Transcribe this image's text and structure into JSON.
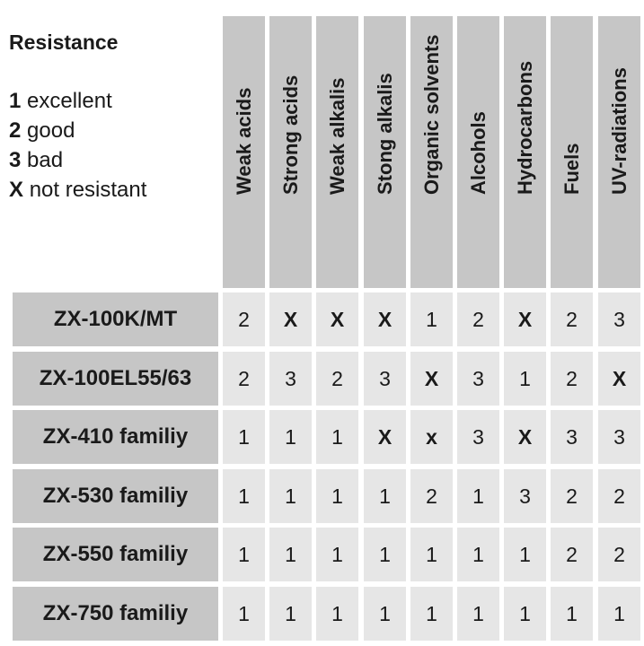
{
  "legend": {
    "title": "Resistance",
    "items": [
      {
        "key": "1",
        "text": "excellent"
      },
      {
        "key": "2",
        "text": "good"
      },
      {
        "key": "3",
        "text": "bad"
      },
      {
        "key": "X",
        "text": "not resistant"
      }
    ]
  },
  "chart_data": {
    "type": "table",
    "title": "Resistance",
    "columns": [
      "Weak acids",
      "Strong acids",
      "Weak alkalis",
      "Stong alkalis",
      "Organic solvents",
      "Alcohols",
      "Hydrocarbons",
      "Fuels",
      "UV-radiations"
    ],
    "rows": [
      {
        "name": "ZX-100K/MT",
        "values": [
          "2",
          "X",
          "X",
          "X",
          "1",
          "2",
          "X",
          "2",
          "3"
        ]
      },
      {
        "name": "ZX-100EL55/63",
        "values": [
          "2",
          "3",
          "2",
          "3",
          "X",
          "3",
          "1",
          "2",
          "X"
        ]
      },
      {
        "name": "ZX-410 familiy",
        "values": [
          "1",
          "1",
          "1",
          "X",
          "x",
          "3",
          "X",
          "3",
          "3"
        ]
      },
      {
        "name": "ZX-530 familiy",
        "values": [
          "1",
          "1",
          "1",
          "1",
          "2",
          "1",
          "3",
          "2",
          "2"
        ]
      },
      {
        "name": "ZX-550 familiy",
        "values": [
          "1",
          "1",
          "1",
          "1",
          "1",
          "1",
          "1",
          "2",
          "2"
        ]
      },
      {
        "name": "ZX-750 familiy",
        "values": [
          "1",
          "1",
          "1",
          "1",
          "1",
          "1",
          "1",
          "1",
          "1"
        ]
      }
    ]
  }
}
